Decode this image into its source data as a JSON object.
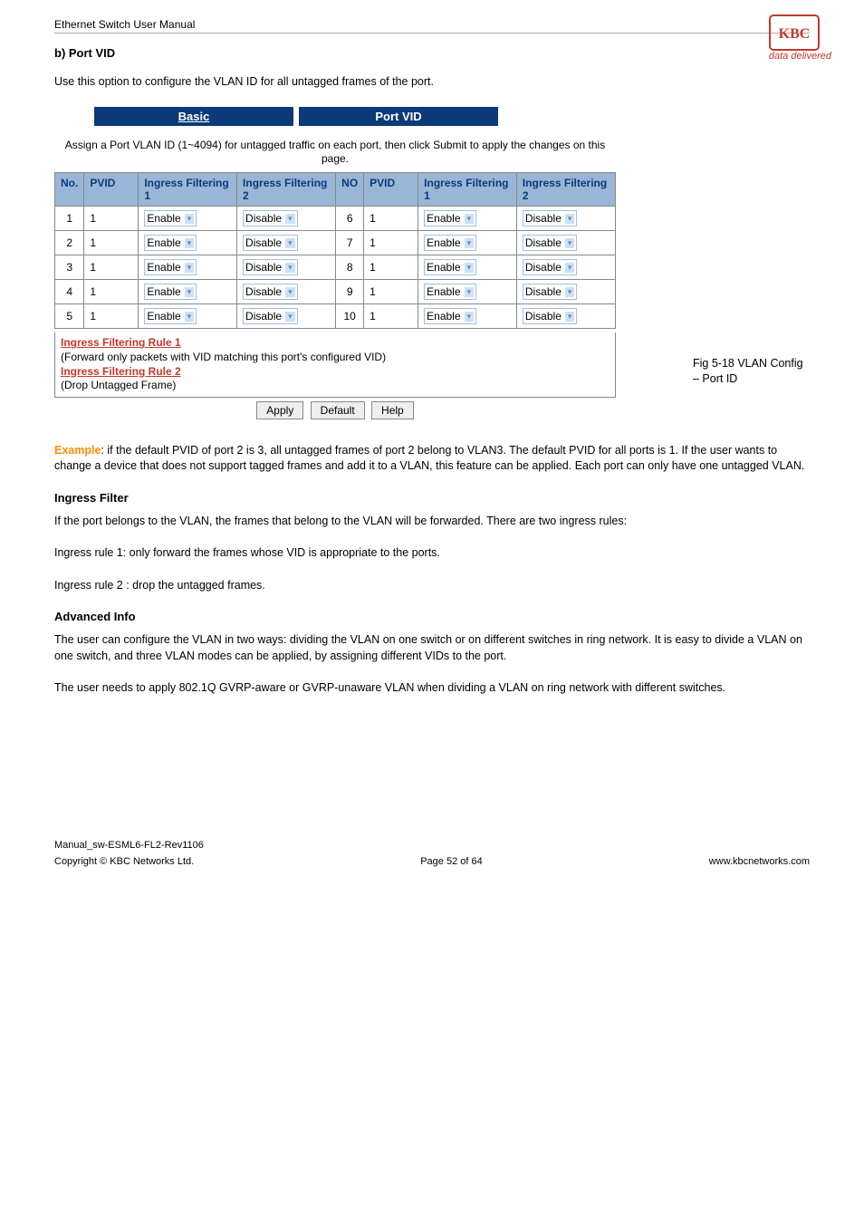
{
  "logo": {
    "brand": "KBC",
    "tagline": "data delivered"
  },
  "header": {
    "title": "Ethernet Switch User Manual"
  },
  "section_b": {
    "heading": "b)    Port VID",
    "intro": "Use this option to configure the VLAN ID for all untagged frames of the port."
  },
  "tabs": {
    "basic": "Basic",
    "pvid": "Port VID"
  },
  "assign_text": "Assign a Port VLAN ID (1~4094) for untagged traffic on each port,\nthen click Submit to apply the changes on this page.",
  "table": {
    "headers": {
      "no": "No.",
      "pvid": "PVID",
      "f1": "Ingress Filtering 1",
      "f2": "Ingress Filtering 2",
      "no2": "NO",
      "pvid2": "PVID",
      "f1b": "Ingress Filtering 1",
      "f2b": "Ingress Filtering 2"
    },
    "rows": [
      {
        "no": "1",
        "pvid": "1",
        "f1": "Enable",
        "f2": "Disable",
        "no2": "6",
        "pvid2": "1",
        "f1b": "Enable",
        "f2b": "Disable"
      },
      {
        "no": "2",
        "pvid": "1",
        "f1": "Enable",
        "f2": "Disable",
        "no2": "7",
        "pvid2": "1",
        "f1b": "Enable",
        "f2b": "Disable"
      },
      {
        "no": "3",
        "pvid": "1",
        "f1": "Enable",
        "f2": "Disable",
        "no2": "8",
        "pvid2": "1",
        "f1b": "Enable",
        "f2b": "Disable"
      },
      {
        "no": "4",
        "pvid": "1",
        "f1": "Enable",
        "f2": "Disable",
        "no2": "9",
        "pvid2": "1",
        "f1b": "Enable",
        "f2b": "Disable"
      },
      {
        "no": "5",
        "pvid": "1",
        "f1": "Enable",
        "f2": "Disable",
        "no2": "10",
        "pvid2": "1",
        "f1b": "Enable",
        "f2b": "Disable"
      }
    ]
  },
  "rules": {
    "r1_title": "Ingress Filtering Rule 1",
    "r1_desc": "(Forward only packets with VID matching this port's configured VID)",
    "r2_title": "Ingress Filtering Rule 2",
    "r2_desc": "(Drop Untagged Frame)"
  },
  "buttons": {
    "apply": "Apply",
    "default": "Default",
    "help": "Help"
  },
  "sidecap": "Fig 5-18 VLAN Config – Port ID",
  "example": {
    "label": "Example",
    "text": ": if the default PVID of port 2 is 3, all untagged frames of port 2 belong to VLAN3. The default PVID for all ports is 1. If the user wants to change a device that does not support tagged frames and add it to a VLAN, this feature can be applied. Each port can only have one untagged VLAN."
  },
  "ingress_filter": {
    "heading": "Ingress Filter",
    "p1": "If the port belongs to the VLAN, the frames that belong to the VLAN will be forwarded. There are two ingress rules:",
    "p2": "Ingress rule 1: only forward the frames whose VID is appropriate to the ports.",
    "p3": "Ingress rule 2 : drop the untagged frames."
  },
  "advanced": {
    "heading": " Advanced Info",
    "p1": "The user can configure the VLAN in two ways: dividing the VLAN on one switch or on different switches in ring network. It is easy to divide a VLAN on one switch, and three VLAN modes can be applied, by assigning different VIDs to the port.",
    "p2": "The user needs to apply 802.1Q GVRP-aware or GVRP-unaware VLAN when dividing a VLAN on ring network with different switches."
  },
  "footer": {
    "manual": "Manual_sw-ESML6-FL2-Rev1106",
    "copyright": "Copyright © KBC Networks Ltd.",
    "page": "Page 52 of 64",
    "url": "www.kbcnetworks.com"
  },
  "colors": {
    "tab_bg": "#0a3a7a",
    "th_bg": "#9ab6d6",
    "th_color": "#0a3a7a",
    "rule_color": "#c0392b",
    "example_color": "#ff8c00"
  }
}
